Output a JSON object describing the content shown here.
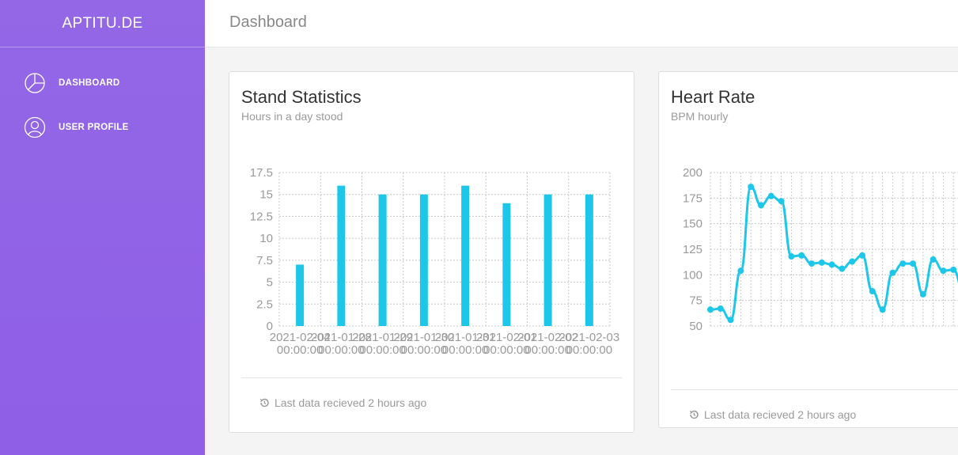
{
  "brand": "APTITU.DE",
  "sidebar": {
    "items": [
      {
        "label": "DASHBOARD",
        "icon": "pie-chart-icon"
      },
      {
        "label": "USER PROFILE",
        "icon": "user-icon"
      }
    ]
  },
  "topbar": {
    "title": "Dashboard"
  },
  "colors": {
    "sidebar": "#9064e6",
    "chart": "#1dc7ea"
  },
  "cards": {
    "stand": {
      "title": "Stand Statistics",
      "subtitle": "Hours in a day stood",
      "footer": "Last data recieved 2 hours ago",
      "footer_icon": "history-icon"
    },
    "heart": {
      "title": "Heart Rate",
      "subtitle": "BPM hourly",
      "footer": "Last data recieved 2 hours ago",
      "footer_icon": "history-icon"
    }
  },
  "chart_data": [
    {
      "type": "bar",
      "categories": [
        "2021-02-04 00:00:00",
        "2021-01-28 00:00:00",
        "2021-01-29 00:00:00",
        "2021-01-30 00:00:00",
        "2021-01-31 00:00:00",
        "2021-02-01 00:00:00",
        "2021-02-02 00:00:00",
        "2021-02-03 00:00:00"
      ],
      "values": [
        7,
        16,
        15,
        15,
        16,
        14,
        15,
        15
      ],
      "ylim": [
        0,
        17.5
      ],
      "yticks": [
        "0",
        "2.5",
        "5",
        "7.5",
        "10",
        "12.5",
        "15",
        "17.5"
      ],
      "grid": true
    },
    {
      "type": "line",
      "y": [
        66,
        67,
        56,
        104,
        186,
        168,
        177,
        172,
        118,
        119,
        111,
        112,
        110,
        106,
        113,
        119,
        84,
        66,
        102,
        111,
        111,
        81,
        115,
        104,
        105,
        84
      ],
      "ylim": [
        50,
        200
      ],
      "yticks": [
        "50",
        "75",
        "100",
        "125",
        "150",
        "175",
        "200"
      ],
      "grid": true
    }
  ]
}
